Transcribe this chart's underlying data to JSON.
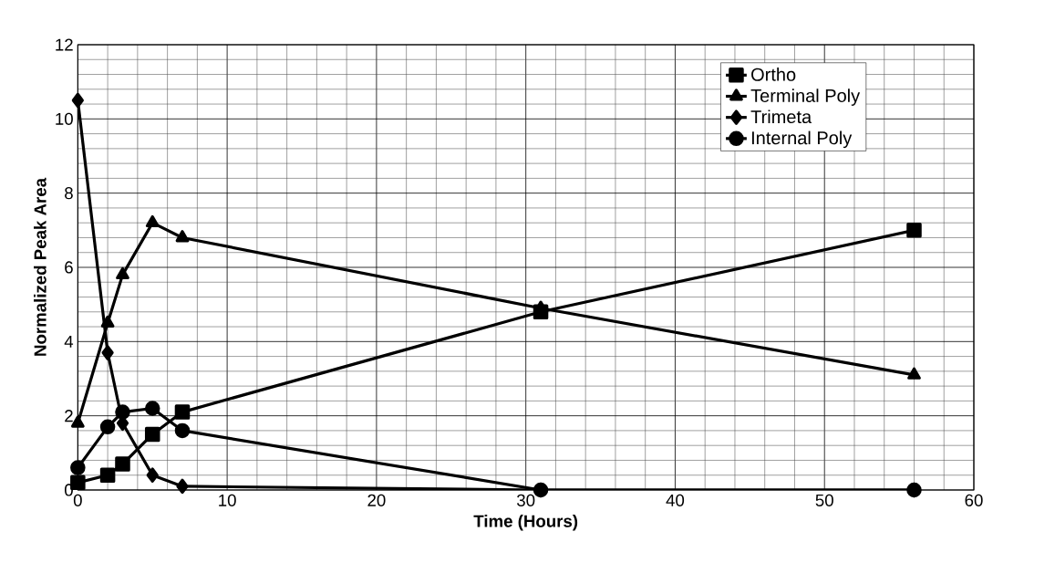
{
  "chart_data": {
    "type": "line",
    "xlabel": "Time (Hours)",
    "ylabel": "Normalized Peak Area",
    "x": [
      0,
      2,
      3,
      5,
      7,
      31,
      56
    ],
    "series": [
      {
        "name": "Ortho",
        "color": "#000000",
        "marker": "square",
        "values": [
          0.2,
          0.4,
          0.7,
          1.5,
          2.1,
          4.8,
          7.0
        ]
      },
      {
        "name": "Terminal Poly",
        "color": "#000000",
        "marker": "triangle",
        "values": [
          1.8,
          4.5,
          5.8,
          7.2,
          6.8,
          4.9,
          3.1
        ]
      },
      {
        "name": "Trimeta",
        "color": "#000000",
        "marker": "diamond",
        "values": [
          10.5,
          3.7,
          1.8,
          0.4,
          0.1,
          0,
          0
        ]
      },
      {
        "name": "Internal Poly",
        "color": "#000000",
        "marker": "circle",
        "values": [
          0.6,
          1.7,
          2.1,
          2.2,
          1.6,
          0,
          0
        ]
      }
    ],
    "xlim": [
      0,
      60
    ],
    "xticks": [
      0,
      10,
      20,
      30,
      40,
      50,
      60
    ],
    "ylim": [
      0,
      12
    ],
    "yticks": [
      0,
      2,
      4,
      6,
      8,
      10,
      12
    ],
    "grid": true,
    "legend": "top right",
    "line_style": "solid"
  }
}
